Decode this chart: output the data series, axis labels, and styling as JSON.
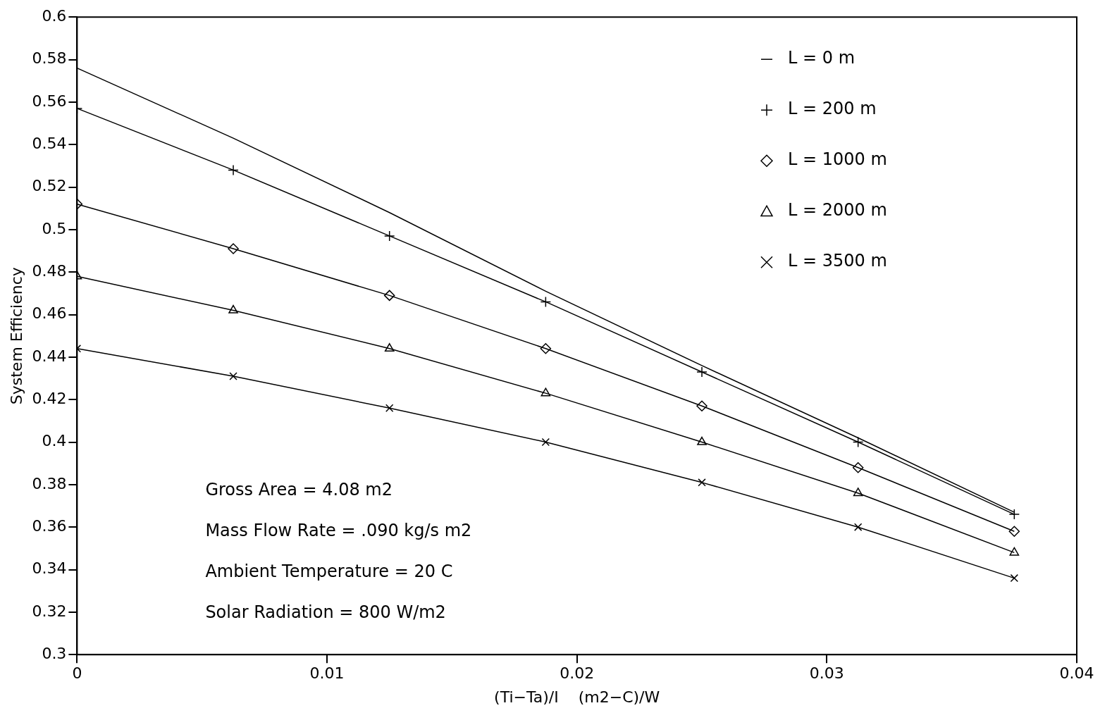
{
  "chart_data": {
    "type": "line",
    "xlabel": "(Ti−Ta)/I    (m2−C)/W",
    "ylabel": "System Efficiency",
    "x": [
      0,
      0.00625,
      0.0125,
      0.01875,
      0.025,
      0.03125,
      0.0375
    ],
    "series": [
      {
        "name": "L = 0 m",
        "color": "#000000",
        "marker": "none",
        "values": [
          0.576,
          0.543,
          0.508,
          0.471,
          0.436,
          0.402,
          0.367
        ]
      },
      {
        "name": "L = 200 m",
        "color": "#000000",
        "marker": "cross",
        "values": [
          0.557,
          0.528,
          0.497,
          0.466,
          0.433,
          0.4,
          0.366
        ]
      },
      {
        "name": "L = 1000 m",
        "color": "#000000",
        "marker": "diamond",
        "values": [
          0.512,
          0.491,
          0.469,
          0.444,
          0.417,
          0.388,
          0.358
        ]
      },
      {
        "name": "L = 2000 m",
        "color": "#000000",
        "marker": "triangle",
        "values": [
          0.478,
          0.462,
          0.444,
          0.423,
          0.4,
          0.376,
          0.348
        ]
      },
      {
        "name": "L = 3500 m",
        "color": "#000000",
        "marker": "x",
        "values": [
          0.444,
          0.431,
          0.416,
          0.4,
          0.381,
          0.36,
          0.336
        ]
      }
    ],
    "xlim": [
      0,
      0.04
    ],
    "xticks": [
      0,
      0.01,
      0.02,
      0.03,
      0.04
    ],
    "ylim": [
      0.3,
      0.6
    ],
    "yticks": [
      0.3,
      0.32,
      0.34,
      0.36,
      0.38,
      0.4,
      0.42,
      0.44,
      0.46,
      0.48,
      0.5,
      0.52,
      0.54,
      0.56,
      0.58,
      0.6
    ],
    "grid": false,
    "legend": "top right",
    "line_style": "solid",
    "annotations": [
      "Gross Area = 4.08 m2",
      "Mass Flow Rate = .090 kg/s m2",
      "Ambient Temperature = 20 C",
      "Solar Radiation = 800 W/m2"
    ]
  }
}
